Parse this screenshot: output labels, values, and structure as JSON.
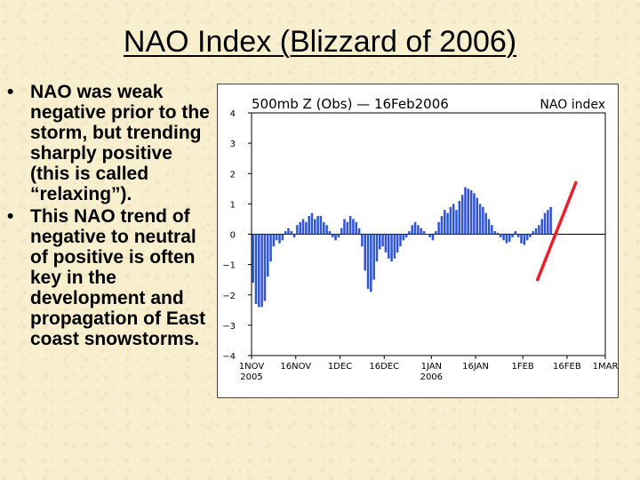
{
  "slide": {
    "title": "NAO Index (Blizzard of 2006)",
    "bullets": [
      "NAO was weak negative prior to the storm, but trending sharply positive (this is called “relaxing”).",
      "This NAO trend of negative to neutral of positive is often key in the development and propagation of East coast snowstorms."
    ],
    "bullet_symbol": "•"
  },
  "chart_data": {
    "type": "bar",
    "title": "500mb Z (Obs) — 16Feb2006",
    "title_right": "NAO index",
    "ylim": [
      -4,
      4
    ],
    "yticks": [
      -4,
      -3,
      -2,
      -1,
      0,
      1,
      2,
      3,
      4
    ],
    "xlim": [
      0,
      120
    ],
    "xticks": [
      {
        "x": 0,
        "label": "1NOV",
        "sub": "2005"
      },
      {
        "x": 15,
        "label": "16NOV",
        "sub": ""
      },
      {
        "x": 30,
        "label": "1DEC",
        "sub": ""
      },
      {
        "x": 45,
        "label": "16DEC",
        "sub": ""
      },
      {
        "x": 61,
        "label": "1JAN",
        "sub": "2006"
      },
      {
        "x": 76,
        "label": "16JAN",
        "sub": ""
      },
      {
        "x": 92,
        "label": "1FEB",
        "sub": ""
      },
      {
        "x": 107,
        "label": "16FEB",
        "sub": ""
      },
      {
        "x": 120,
        "label": "1MAR",
        "sub": ""
      }
    ],
    "bar_color": "#2f55d4",
    "values": [
      -1.6,
      -2.3,
      -2.4,
      -2.4,
      -2.2,
      -1.4,
      -0.9,
      -0.4,
      -0.2,
      -0.3,
      -0.2,
      0.1,
      0.2,
      0.1,
      -0.1,
      0.3,
      0.4,
      0.5,
      0.4,
      0.6,
      0.7,
      0.5,
      0.6,
      0.6,
      0.4,
      0.3,
      0.1,
      -0.1,
      -0.2,
      -0.1,
      0.2,
      0.5,
      0.4,
      0.6,
      0.5,
      0.4,
      0.2,
      -0.4,
      -1.2,
      -1.8,
      -1.9,
      -1.5,
      -0.9,
      -0.5,
      -0.4,
      -0.6,
      -0.8,
      -0.9,
      -0.8,
      -0.6,
      -0.4,
      -0.2,
      -0.1,
      0.1,
      0.3,
      0.4,
      0.3,
      0.2,
      0.1,
      0.0,
      -0.1,
      -0.2,
      0.1,
      0.4,
      0.6,
      0.8,
      0.7,
      0.9,
      1.0,
      0.8,
      1.1,
      1.3,
      1.55,
      1.5,
      1.45,
      1.35,
      1.2,
      1.0,
      0.9,
      0.7,
      0.5,
      0.3,
      0.1,
      0.05,
      -0.1,
      -0.2,
      -0.3,
      -0.25,
      -0.1,
      0.1,
      -0.1,
      -0.3,
      -0.35,
      -0.2,
      -0.1,
      0.1,
      0.2,
      0.3,
      0.5,
      0.7,
      0.8,
      0.9
    ],
    "trend_line": {
      "color": "#e8202c",
      "from": [
        97,
        -1.5
      ],
      "to": [
        110,
        1.7
      ]
    }
  }
}
